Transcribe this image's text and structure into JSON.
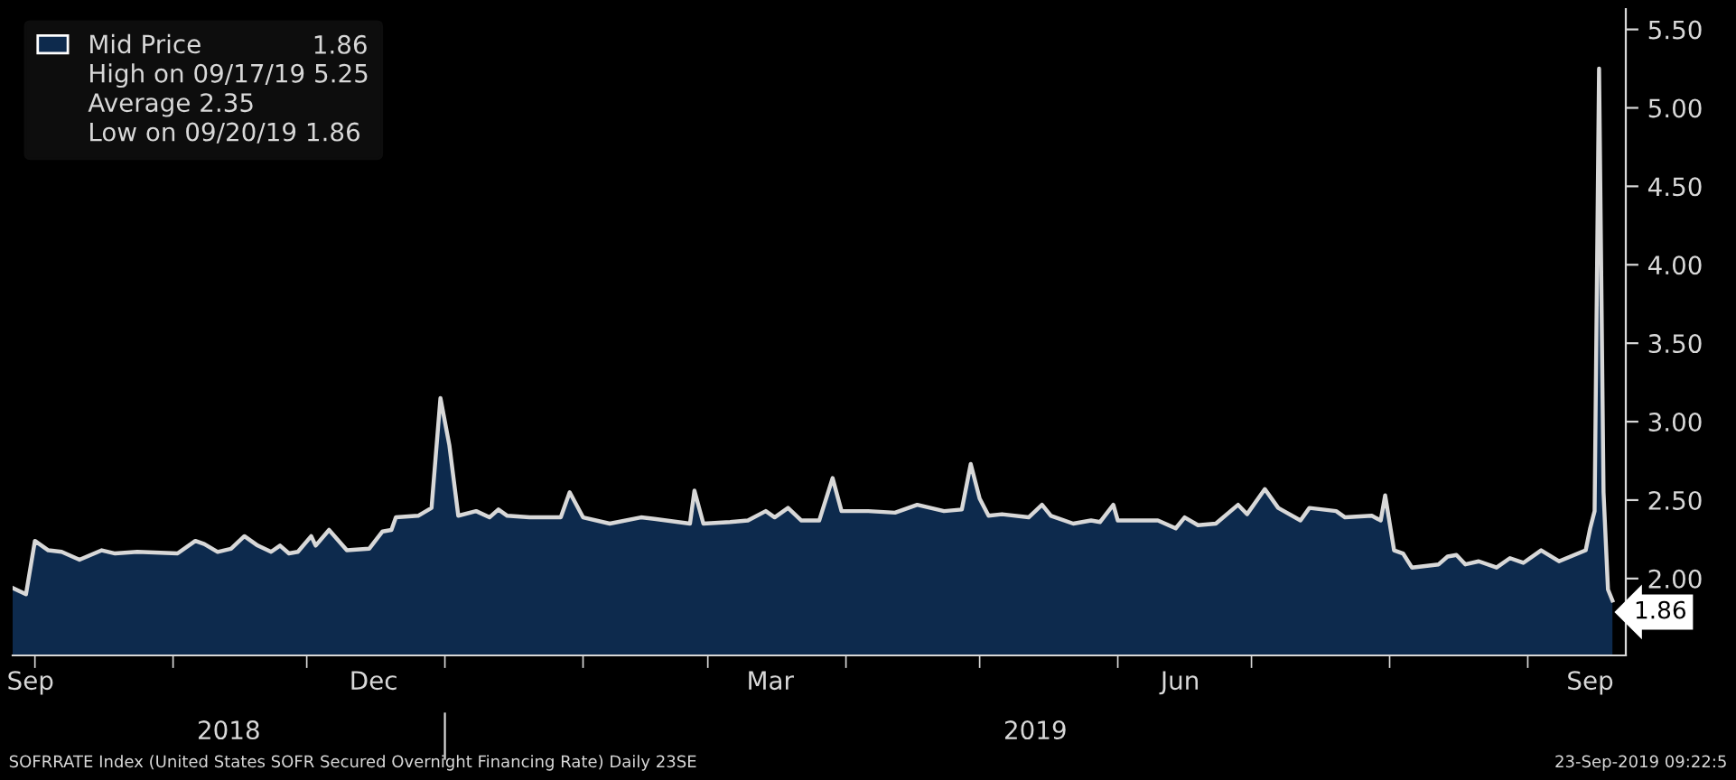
{
  "chart_data": {
    "type": "area",
    "legend": "top left",
    "grid": false,
    "marker": "none",
    "line_style": "solid",
    "xlim": [
      "2018-09-26",
      "2019-09-23"
    ],
    "xticks": [
      {
        "value": "2018-09-30",
        "label": "Sep"
      },
      {
        "value": "2018-10-01",
        "label": null
      },
      {
        "value": "2018-11-01",
        "label": null
      },
      {
        "value": "2018-12-01",
        "label": null
      },
      {
        "value": "2018-12-16",
        "label": "Dec"
      },
      {
        "value": "2019-01-01",
        "label": null
      },
      {
        "value": "2019-02-01",
        "label": null
      },
      {
        "value": "2019-03-01",
        "label": null
      },
      {
        "value": "2019-03-15",
        "label": "Mar"
      },
      {
        "value": "2019-04-01",
        "label": null
      },
      {
        "value": "2019-05-01",
        "label": null
      },
      {
        "value": "2019-06-01",
        "label": null
      },
      {
        "value": "2019-06-15",
        "label": "Jun"
      },
      {
        "value": "2019-07-01",
        "label": null
      },
      {
        "value": "2019-08-01",
        "label": null
      },
      {
        "value": "2019-09-01",
        "label": null
      },
      {
        "value": "2019-09-15",
        "label": "Sep"
      }
    ],
    "ylim": [
      1.51,
      5.63
    ],
    "yticks": [
      {
        "value": 2.0,
        "label": "2.00"
      },
      {
        "value": 2.5,
        "label": "2.50"
      },
      {
        "value": 3.0,
        "label": "3.00"
      },
      {
        "value": 3.5,
        "label": "3.50"
      },
      {
        "value": 4.0,
        "label": "4.00"
      },
      {
        "value": 4.5,
        "label": "4.50"
      },
      {
        "value": 5.0,
        "label": "5.00"
      },
      {
        "value": 5.5,
        "label": "5.50"
      }
    ],
    "annotations": [
      "1.86",
      "High on 09/17/19 5.25",
      "Average 2.35",
      "Low on 09/20/19 1.86",
      "2018",
      "2019",
      "SOFRRATE Index (United States SOFR Secured Overnight Financing Rate) Daily 23SE",
      "23-Sep-2019 09:22:5"
    ],
    "series": [
      {
        "name": "Mid Price",
        "color": "#0d2a4d",
        "x": [
          "2018-09-26",
          "2018-09-29",
          "2018-10-01",
          "2018-10-04",
          "2018-10-07",
          "2018-10-11",
          "2018-10-16",
          "2018-10-19",
          "2018-10-24",
          "2018-11-02",
          "2018-11-06",
          "2018-11-08",
          "2018-11-11",
          "2018-11-14",
          "2018-11-17",
          "2018-11-20",
          "2018-11-23",
          "2018-11-25",
          "2018-11-27",
          "2018-11-29",
          "2018-12-02",
          "2018-12-03",
          "2018-12-06",
          "2018-12-10",
          "2018-12-15",
          "2018-12-18",
          "2018-12-20",
          "2018-12-21",
          "2018-12-26",
          "2018-12-29",
          "2018-12-31",
          "2019-01-02",
          "2019-01-04",
          "2019-01-08",
          "2019-01-11",
          "2019-01-13",
          "2019-01-15",
          "2019-01-20",
          "2019-01-27",
          "2019-01-29",
          "2019-02-01",
          "2019-02-07",
          "2019-02-14",
          "2019-02-17",
          "2019-02-25",
          "2019-02-26",
          "2019-02-28",
          "2019-03-06",
          "2019-03-10",
          "2019-03-14",
          "2019-03-16",
          "2019-03-19",
          "2019-03-22",
          "2019-03-26",
          "2019-03-29",
          "2019-03-31",
          "2019-04-06",
          "2019-04-12",
          "2019-04-17",
          "2019-04-23",
          "2019-04-27",
          "2019-04-29",
          "2019-05-01",
          "2019-05-03",
          "2019-05-06",
          "2019-05-12",
          "2019-05-15",
          "2019-05-17",
          "2019-05-22",
          "2019-05-26",
          "2019-05-28",
          "2019-05-31",
          "2019-06-01",
          "2019-06-10",
          "2019-06-14",
          "2019-06-16",
          "2019-06-19",
          "2019-06-23",
          "2019-06-28",
          "2019-06-30",
          "2019-07-04",
          "2019-07-07",
          "2019-07-12",
          "2019-07-14",
          "2019-07-20",
          "2019-07-22",
          "2019-07-28",
          "2019-07-30",
          "2019-07-31",
          "2019-08-02",
          "2019-08-04",
          "2019-08-06",
          "2019-08-12",
          "2019-08-14",
          "2019-08-16",
          "2019-08-18",
          "2019-08-21",
          "2019-08-25",
          "2019-08-28",
          "2019-08-31",
          "2019-09-04",
          "2019-09-08",
          "2019-09-14",
          "2019-09-15",
          "2019-09-16",
          "2019-09-17",
          "2019-09-18",
          "2019-09-19",
          "2019-09-20"
        ],
        "values": [
          1.94,
          1.9,
          2.24,
          2.18,
          2.17,
          2.12,
          2.18,
          2.16,
          2.17,
          2.16,
          2.24,
          2.22,
          2.17,
          2.19,
          2.27,
          2.21,
          2.17,
          2.21,
          2.16,
          2.17,
          2.27,
          2.21,
          2.31,
          2.18,
          2.19,
          2.3,
          2.31,
          2.39,
          2.4,
          2.45,
          3.15,
          2.85,
          2.4,
          2.43,
          2.39,
          2.44,
          2.4,
          2.39,
          2.39,
          2.55,
          2.39,
          2.35,
          2.39,
          2.38,
          2.35,
          2.56,
          2.35,
          2.36,
          2.37,
          2.43,
          2.39,
          2.45,
          2.37,
          2.37,
          2.64,
          2.43,
          2.43,
          2.42,
          2.47,
          2.43,
          2.44,
          2.73,
          2.51,
          2.4,
          2.41,
          2.39,
          2.47,
          2.4,
          2.35,
          2.37,
          2.36,
          2.47,
          2.37,
          2.37,
          2.32,
          2.39,
          2.34,
          2.35,
          2.47,
          2.41,
          2.57,
          2.45,
          2.37,
          2.45,
          2.43,
          2.39,
          2.4,
          2.37,
          2.53,
          2.18,
          2.16,
          2.07,
          2.09,
          2.14,
          2.15,
          2.09,
          2.11,
          2.07,
          2.13,
          2.1,
          2.18,
          2.11,
          2.18,
          2.32,
          2.43,
          5.25,
          2.55,
          1.93,
          1.86
        ],
        "value_labels": [
          null,
          null,
          null,
          null,
          null,
          null,
          null,
          null,
          null,
          null,
          null,
          null,
          null,
          null,
          null,
          null,
          null,
          null,
          null,
          null,
          null,
          null,
          null,
          null,
          null,
          null,
          null,
          null,
          null,
          null,
          null,
          null,
          null,
          null,
          null,
          null,
          null,
          null,
          null,
          null,
          null,
          null,
          null,
          null,
          null,
          null,
          null,
          null,
          null,
          null,
          null,
          null,
          null,
          null,
          null,
          null,
          null,
          null,
          null,
          null,
          null,
          null,
          null,
          null,
          null,
          null,
          null,
          null,
          null,
          null,
          null,
          null,
          null,
          null,
          null,
          null,
          null,
          null,
          null,
          null,
          null,
          null,
          null,
          null,
          null,
          null,
          null,
          null,
          null,
          null,
          null,
          null,
          null,
          null,
          null,
          null,
          null,
          null,
          null,
          null,
          null,
          null,
          null,
          null,
          null,
          null,
          null,
          null,
          "1.86"
        ]
      }
    ]
  }
}
